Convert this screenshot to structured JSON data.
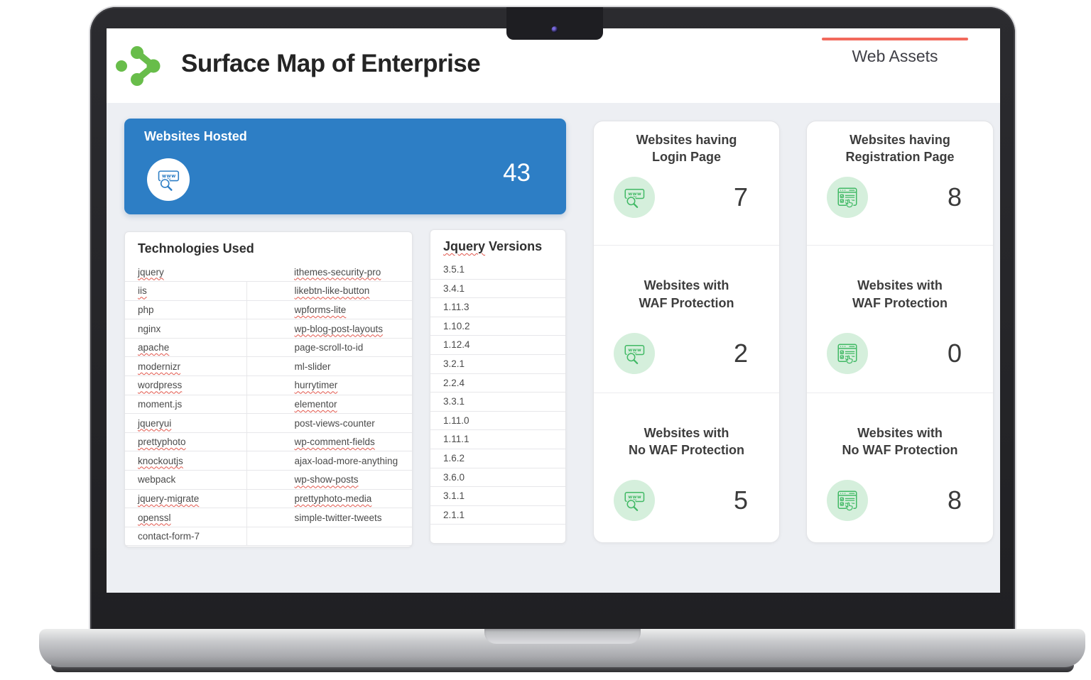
{
  "header": {
    "title": "Surface Map of Enterprise",
    "section_label": "Web Assets"
  },
  "hosted": {
    "title": "Websites Hosted",
    "value": "43"
  },
  "technologies": {
    "title": "Technologies Used",
    "rows": [
      {
        "left": {
          "text": "jquery",
          "wavy": true
        },
        "right": {
          "text": "ithemes-security-pro",
          "wavy": true
        }
      },
      {
        "left": {
          "text": "iis",
          "wavy": true
        },
        "right": {
          "text": "likebtn-like-button",
          "wavy": true
        }
      },
      {
        "left": {
          "text": "php",
          "wavy": false
        },
        "right": {
          "text": "wpforms-lite",
          "wavy": true
        }
      },
      {
        "left": {
          "text": "nginx",
          "wavy": false
        },
        "right": {
          "text": "wp-blog-post-layouts",
          "wavy": true
        }
      },
      {
        "left": {
          "text": "apache",
          "wavy": true
        },
        "right": {
          "text": "page-scroll-to-id",
          "wavy": false
        }
      },
      {
        "left": {
          "text": "modernizr",
          "wavy": true
        },
        "right": {
          "text": "ml-slider",
          "wavy": false
        }
      },
      {
        "left": {
          "text": "wordpress",
          "wavy": true
        },
        "right": {
          "text": "hurrytimer",
          "wavy": true
        }
      },
      {
        "left": {
          "text": "moment.js",
          "wavy": false
        },
        "right": {
          "text": "elementor",
          "wavy": true
        }
      },
      {
        "left": {
          "text": "jqueryui",
          "wavy": true
        },
        "right": {
          "text": "post-views-counter",
          "wavy": false
        }
      },
      {
        "left": {
          "text": "prettyphoto",
          "wavy": true
        },
        "right": {
          "text": "wp-comment-fields",
          "wavy": true
        }
      },
      {
        "left": {
          "text": "knockoutjs",
          "wavy": true
        },
        "right": {
          "text": "ajax-load-more-anything",
          "wavy": false
        }
      },
      {
        "left": {
          "text": "webpack",
          "wavy": false
        },
        "right": {
          "text": "wp-show-posts",
          "wavy": true
        }
      },
      {
        "left": {
          "text": "jquery-migrate",
          "wavy": true
        },
        "right": {
          "text": "prettyphoto-media",
          "wavy": true
        }
      },
      {
        "left": {
          "text": "openssl",
          "wavy": true
        },
        "right": {
          "text": "simple-twitter-tweets",
          "wavy": false
        }
      },
      {
        "left": {
          "text": "contact-form-7",
          "wavy": false
        },
        "right": {
          "text": "",
          "wavy": false
        }
      }
    ]
  },
  "jquery_versions": {
    "title_parts": [
      {
        "text": "Jquery",
        "wavy": true
      },
      {
        "text": "Versions",
        "wavy": false
      }
    ],
    "items": [
      "3.5.1",
      "3.4.1",
      "1.11.3",
      "1.10.2",
      "1.12.4",
      "3.2.1",
      "2.2.4",
      "3.3.1",
      "1.11.0",
      "1.11.1",
      "1.6.2",
      "3.6.0",
      "3.1.1",
      "2.1.1"
    ]
  },
  "stats": {
    "column_a": [
      {
        "line1": "Websites having",
        "line2": "Login Page",
        "value": "7",
        "icon": "www-search-icon"
      },
      {
        "line1": "Websites with",
        "line2": "WAF Protection",
        "value": "2",
        "icon": "www-search-icon"
      },
      {
        "line1": "Websites with",
        "line2": "No WAF Protection",
        "value": "5",
        "icon": "www-search-icon"
      }
    ],
    "column_b": [
      {
        "line1": "Websites having",
        "line2": "Registration Page",
        "value": "8",
        "icon": "registration-form-icon"
      },
      {
        "line1": "Websites with",
        "line2": "WAF Protection",
        "value": "0",
        "icon": "registration-form-icon"
      },
      {
        "line1": "Websites with",
        "line2": "No WAF Protection",
        "value": "8",
        "icon": "registration-form-icon"
      }
    ]
  },
  "colors": {
    "accent_blue": "#2d7ec5",
    "accent_green": "#41b965",
    "logo_green": "#68bd4a",
    "light_green_bg": "#d5efdc",
    "accent_coral": "#f2695c",
    "wavy_red": "#e2574c",
    "body_bg": "#edeff3"
  }
}
